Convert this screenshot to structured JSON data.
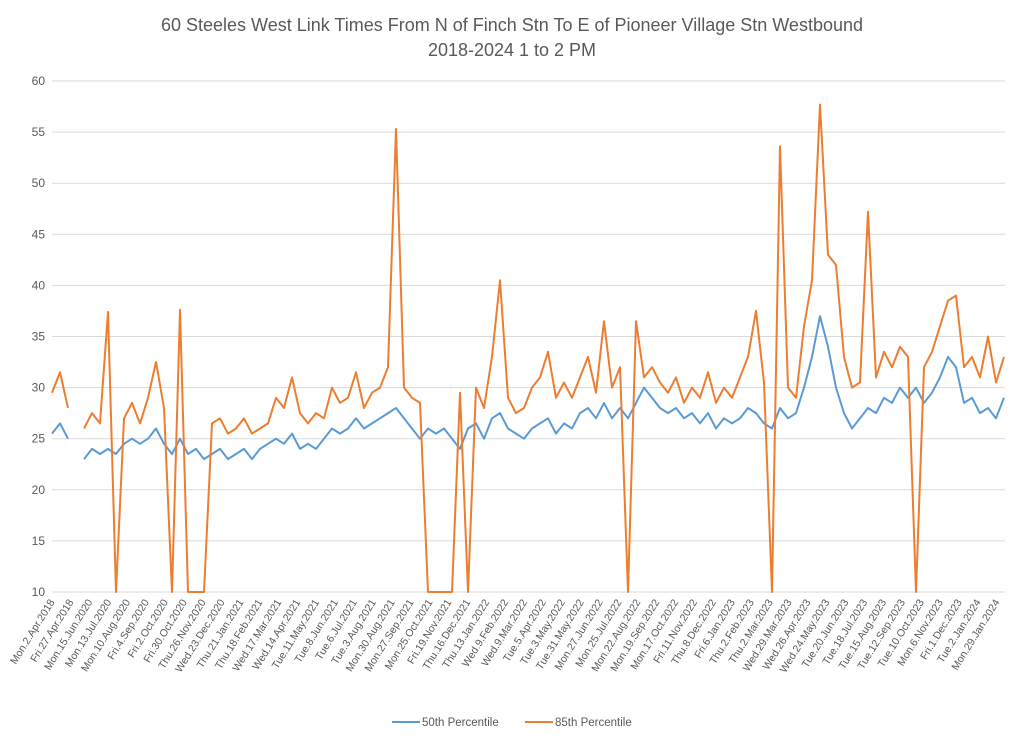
{
  "chart_data": {
    "type": "line",
    "title": [
      "60 Steeles West Link Times From N of Finch Stn To E of Pioneer Village Stn Westbound",
      "2018-2024 1 to 2 PM"
    ],
    "xlabel": "",
    "ylabel": "",
    "ylim": [
      10,
      60
    ],
    "yticks": [
      10,
      15,
      20,
      25,
      30,
      35,
      40,
      45,
      50,
      55,
      60
    ],
    "grid": true,
    "legend_position": "bottom",
    "x_tick_labels": [
      "Mon.2.Apr.2018",
      "Fri.27.Apr.2018",
      "Mon.15.Jun.2020",
      "Mon.13.Jul.2020",
      "Mon.10.Aug.2020",
      "Fri.4.Sep.2020",
      "Fri.2.Oct.2020",
      "Fri.30.Oct.2020",
      "Thu.26.Nov.2020",
      "Wed.23.Dec.2020",
      "Thu.21.Jan.2021",
      "Thu.18.Feb.2021",
      "Wed.17.Mar.2021",
      "Wed.14.Apr.2021",
      "Tue.11.May.2021",
      "Tue.8.Jun.2021",
      "Tue.6.Jul.2021",
      "Tue.3.Aug.2021",
      "Mon.30.Aug.2021",
      "Mon.27.Sep.2021",
      "Mon.25.Oct.2021",
      "Fri.19.Nov.2021",
      "Thu.16.Dec.2021",
      "Thu.13.Jan.2022",
      "Wed.9.Feb.2022",
      "Wed.9.Mar.2022",
      "Tue.5.Apr.2022",
      "Tue.3.May.2022",
      "Tue.31.May.2022",
      "Mon.27.Jun.2022",
      "Mon.25.Jul.2022",
      "Mon.22.Aug.2022",
      "Mon.19.Sep.2022",
      "Mon.17.Oct.2022",
      "Fri.11.Nov.2022",
      "Thu.8.Dec.2022",
      "Fri.6.Jan.2023",
      "Thu.2.Feb.2023",
      "Thu.2.Mar.2023",
      "Wed.29.Mar.2023",
      "Wed.26.Apr.2023",
      "Wed.24.May.2023",
      "Tue.20.Jun.2023",
      "Tue.18.Jul.2023",
      "Tue.15.Aug.2023",
      "Tue.12.Sep.2023",
      "Tue.10.Oct.2023",
      "Mon.6.Nov.2023",
      "Fri.1.Dec.2023",
      "Tue.2.Jan.2024",
      "Mon.29.Jan.2024"
    ],
    "series": [
      {
        "name": "50th Percentile",
        "color": "#5B9BD5",
        "values": [
          25.5,
          26.5,
          25,
          null,
          23,
          24,
          23.5,
          24,
          23.5,
          24.5,
          25,
          24.5,
          25,
          26,
          24.5,
          23.5,
          25,
          23.5,
          24,
          23,
          23.5,
          24,
          23,
          23.5,
          24,
          23,
          24,
          24.5,
          25,
          24.5,
          25.5,
          24,
          24.5,
          24,
          25,
          26,
          25.5,
          26,
          27,
          26,
          26.5,
          27,
          27.5,
          28,
          27,
          26,
          25,
          26,
          25.5,
          26,
          25,
          24,
          26,
          26.5,
          25,
          27,
          27.5,
          26,
          25.5,
          25,
          26,
          26.5,
          27,
          25.5,
          26.5,
          26,
          27.5,
          28,
          27,
          28.5,
          27,
          28,
          27,
          28.5,
          30,
          29,
          28,
          27.5,
          28,
          27,
          27.5,
          26.5,
          27.5,
          26,
          27,
          26.5,
          27,
          28,
          27.5,
          26.5,
          26,
          28,
          27,
          27.5,
          30,
          33,
          37,
          34,
          30,
          27.5,
          26,
          27,
          28,
          27.5,
          29,
          28.5,
          30,
          29,
          30,
          28.5,
          29.5,
          31,
          33,
          32,
          28.5,
          29,
          27.5,
          28,
          27,
          29
        ]
      },
      {
        "name": "85th Percentile",
        "color": "#ED7D31",
        "values": [
          29.5,
          31.5,
          28,
          null,
          26,
          27.5,
          26.5,
          37.4,
          10,
          27,
          28.5,
          26.5,
          29,
          32.5,
          28,
          10,
          37.6,
          10,
          10,
          10,
          26.5,
          27,
          25.5,
          26,
          27,
          25.5,
          26,
          26.5,
          29,
          28,
          31,
          27.5,
          26.5,
          27.5,
          27,
          30,
          28.5,
          29,
          31.5,
          28,
          29.5,
          30,
          32,
          55.3,
          30,
          29,
          28.5,
          10,
          10,
          10,
          10,
          29.5,
          10,
          30,
          28,
          33,
          40.5,
          29,
          27.5,
          28,
          30,
          31,
          33.5,
          29,
          30.5,
          29,
          31,
          33,
          29.5,
          36.5,
          30,
          32,
          10,
          36.5,
          31,
          32,
          30.5,
          29.5,
          31,
          28.5,
          30,
          29,
          31.5,
          28.5,
          30,
          29,
          31,
          33,
          37.5,
          30.5,
          10,
          53.6,
          30,
          29,
          36,
          40.5,
          57.7,
          43,
          42,
          33,
          30,
          30.5,
          47.2,
          31,
          33.5,
          32,
          34,
          33,
          10,
          32,
          33.5,
          36,
          38.5,
          39,
          32,
          33,
          31,
          35,
          30.5,
          33
        ]
      }
    ]
  }
}
